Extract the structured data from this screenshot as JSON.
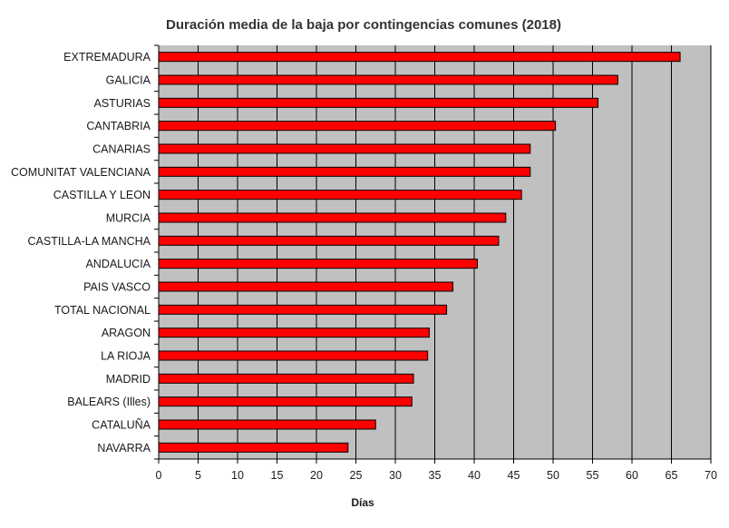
{
  "chart_data": {
    "type": "bar",
    "orientation": "horizontal",
    "title": "Duración media de la baja por contingencias comunes (2018)",
    "xlabel": "Días",
    "ylabel": "",
    "xlim": [
      0,
      70
    ],
    "xticks": [
      0,
      5,
      10,
      15,
      20,
      25,
      30,
      35,
      40,
      45,
      50,
      55,
      60,
      65,
      70
    ],
    "grid": true,
    "legend": "none",
    "colors": {
      "bar": "#ff0000",
      "bar_border": "#000000",
      "plot_bg": "#c0c0c0",
      "grid": "#000000"
    },
    "categories": [
      "EXTREMADURA",
      "GALICIA",
      "ASTURIAS",
      "CANTABRIA",
      "CANARIAS",
      "COMUNITAT VALENCIANA",
      "CASTILLA Y LEON",
      "MURCIA",
      "CASTILLA-LA MANCHA",
      "ANDALUCIA",
      "PAIS VASCO",
      "TOTAL NACIONAL",
      "ARAGON",
      "LA RIOJA",
      "MADRID",
      "BALEARS (Illes)",
      "CATALUÑA",
      "NAVARRA"
    ],
    "values": [
      66.1,
      58.2,
      55.7,
      50.3,
      47.1,
      47.1,
      46.0,
      44.0,
      43.1,
      40.4,
      37.3,
      36.5,
      34.3,
      34.1,
      32.3,
      32.1,
      27.5,
      24.0
    ]
  }
}
